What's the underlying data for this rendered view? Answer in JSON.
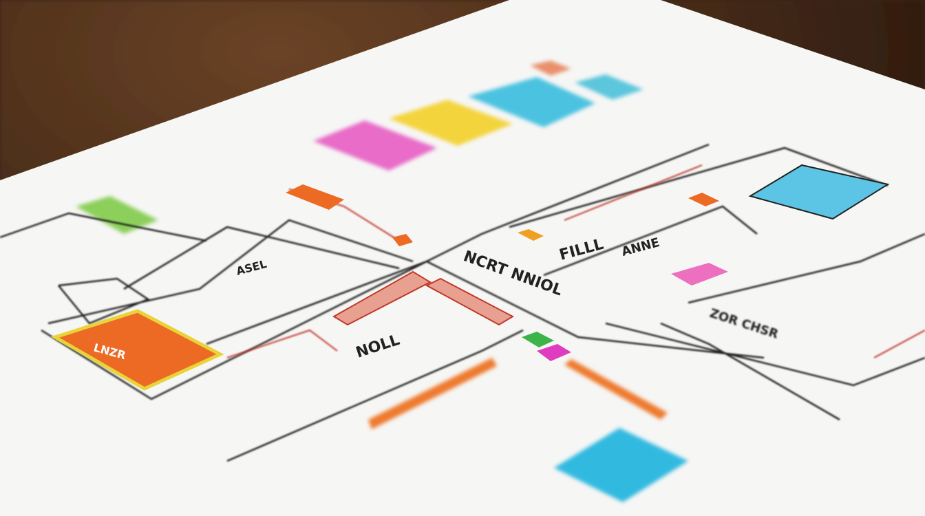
{
  "scene": {
    "center_label": "NCRT NNIOL",
    "labels": [
      "FILLL",
      "ANNE",
      "NOLL",
      "ASEL",
      "LNZR",
      "ZOR CHSR"
    ]
  },
  "colors": {
    "table_wood": "#4a2c18",
    "paper": "#f7f7f6",
    "magenta": "#e86cc8",
    "yellow": "#f4d43c",
    "cyan": "#4cc3e0",
    "orange": "#ec6a24",
    "green": "#8ccf5a",
    "pink": "#ec6fc0",
    "ink": "#222222"
  }
}
